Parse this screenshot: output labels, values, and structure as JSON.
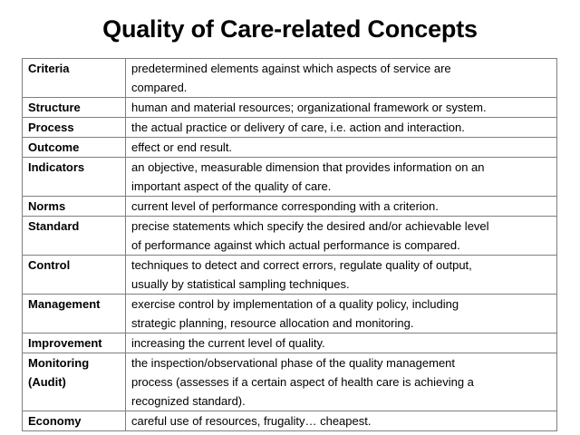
{
  "title": "Quality of Care-related Concepts",
  "rows": [
    {
      "term": "Criteria",
      "definition": "predetermined elements against which aspects of service are\ncompared."
    },
    {
      "term": "Structure",
      "definition": "human and material resources; organizational framework or system."
    },
    {
      "term": "Process",
      "definition": "the actual practice or delivery of care, i.e. action and interaction."
    },
    {
      "term": "Outcome",
      "definition": "effect or end result."
    },
    {
      "term": "Indicators",
      "definition": "an objective, measurable dimension that provides information on an\nimportant  aspect of the quality of care."
    },
    {
      "term": "Norms",
      "definition": "current level of performance corresponding with a criterion."
    },
    {
      "term": "Standard",
      "definition": "precise statements which specify the desired and/or achievable level\nof  performance against which actual performance is compared."
    },
    {
      "term": "Control",
      "definition": "techniques to detect and correct errors, regulate quality of output,\nusually by statistical sampling techniques."
    },
    {
      "term": "Management",
      "definition": "exercise control by implementation of a quality policy, including\nstrategic planning, resource allocation and monitoring."
    },
    {
      "term": "Improvement",
      "definition": "increasing the current level of quality."
    },
    {
      "term": "Monitoring\n(Audit)",
      "definition": "the inspection/observational phase of the quality management\nprocess (assesses if a certain aspect of health care is achieving a\nrecognized standard)."
    },
    {
      "term": "Economy",
      "definition": "careful use of resources, frugality… cheapest."
    }
  ]
}
